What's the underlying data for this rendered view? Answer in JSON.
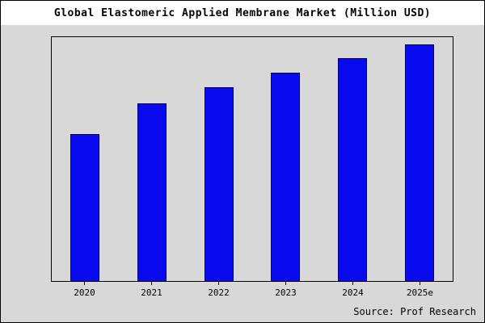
{
  "title": "Global Elastomeric Applied Membrane Market (Million USD)",
  "source": "Source: Prof Research",
  "colors": {
    "bar_fill": "#0a0aee",
    "bar_edge": "#000080",
    "background": "#d8d8d8",
    "title_background": "#ffffff"
  },
  "chart_data": {
    "type": "bar",
    "title": "Global Elastomeric Applied Membrane Market (Million USD)",
    "categories": [
      "2020",
      "2021",
      "2022",
      "2023",
      "2024",
      "2025e"
    ],
    "values": [
      62,
      75,
      82,
      88,
      94,
      100
    ],
    "xlabel": "",
    "ylabel": "",
    "ylim": [
      0,
      103
    ],
    "grid": false,
    "legend": "none",
    "y_axis_tick_labels": "none",
    "annotation": "Source: Prof Research"
  }
}
